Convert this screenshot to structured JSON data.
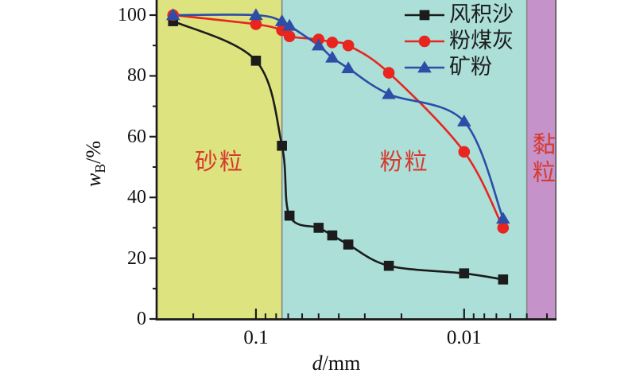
{
  "chart_data": {
    "type": "line",
    "title": "",
    "xlabel": "d/mm",
    "xlabel_var": "d",
    "xlabel_unit": "/mm",
    "ylabel": "wB/%",
    "ylabel_var": "w",
    "ylabel_sub": "B",
    "ylabel_unit": "/%",
    "x_scale": "log",
    "x_direction": "reversed",
    "x_range_mm": [
      0.3,
      0.0036
    ],
    "ylim": [
      0,
      105
    ],
    "grid": false,
    "legend_position": "top-right-inside",
    "xticks_major": [
      0.1,
      0.01
    ],
    "xtick_labels": [
      "0.1",
      "0.01"
    ],
    "xticks_minor": [
      0.2,
      0.09,
      0.08,
      0.07,
      0.06,
      0.05,
      0.04,
      0.03,
      0.02,
      0.009,
      0.008,
      0.007,
      0.006,
      0.005,
      0.004
    ],
    "yticks_major": [
      0,
      20,
      40,
      60,
      80,
      100
    ],
    "ytick_labels": [
      "0",
      "20",
      "40",
      "60",
      "80",
      "100"
    ],
    "yticks_minor": [
      10,
      30,
      50,
      70,
      90
    ],
    "d_mm": [
      0.25,
      0.1,
      0.075,
      0.069,
      0.05,
      0.043,
      0.036,
      0.023,
      0.01,
      0.0065
    ],
    "series": [
      {
        "name": "风积沙",
        "marker": "square",
        "color": "#1c1c1c",
        "values": [
          98,
          85,
          57,
          34,
          30,
          27.5,
          24.5,
          17.5,
          15,
          13
        ]
      },
      {
        "name": "粉煤灰",
        "marker": "circle",
        "color": "#e8251f",
        "values": [
          100,
          97,
          95,
          93,
          92,
          91,
          90,
          81,
          55,
          30
        ]
      },
      {
        "name": "矿粉",
        "marker": "triangle",
        "color": "#2d4da7",
        "values": [
          100,
          100,
          98,
          96.5,
          90,
          86,
          82.5,
          74,
          65,
          33
        ]
      }
    ],
    "regions": [
      {
        "label": "砂粒",
        "d_from": 0.3,
        "d_to": 0.075,
        "fill": "#dde37e",
        "label_color": "#d63a2e",
        "vertical": false
      },
      {
        "label": "粉粒",
        "d_from": 0.075,
        "d_to": 0.005,
        "fill": "#abdfd8",
        "label_color": "#d63a2e",
        "vertical": false
      },
      {
        "label": "黏粒",
        "d_from": 0.005,
        "d_to": 0.0036,
        "fill": "#c592c9",
        "label_color": "#d63a2e",
        "vertical": true
      }
    ],
    "boundary_line_color": "#848484",
    "axis_color": "#1a1a1a"
  }
}
